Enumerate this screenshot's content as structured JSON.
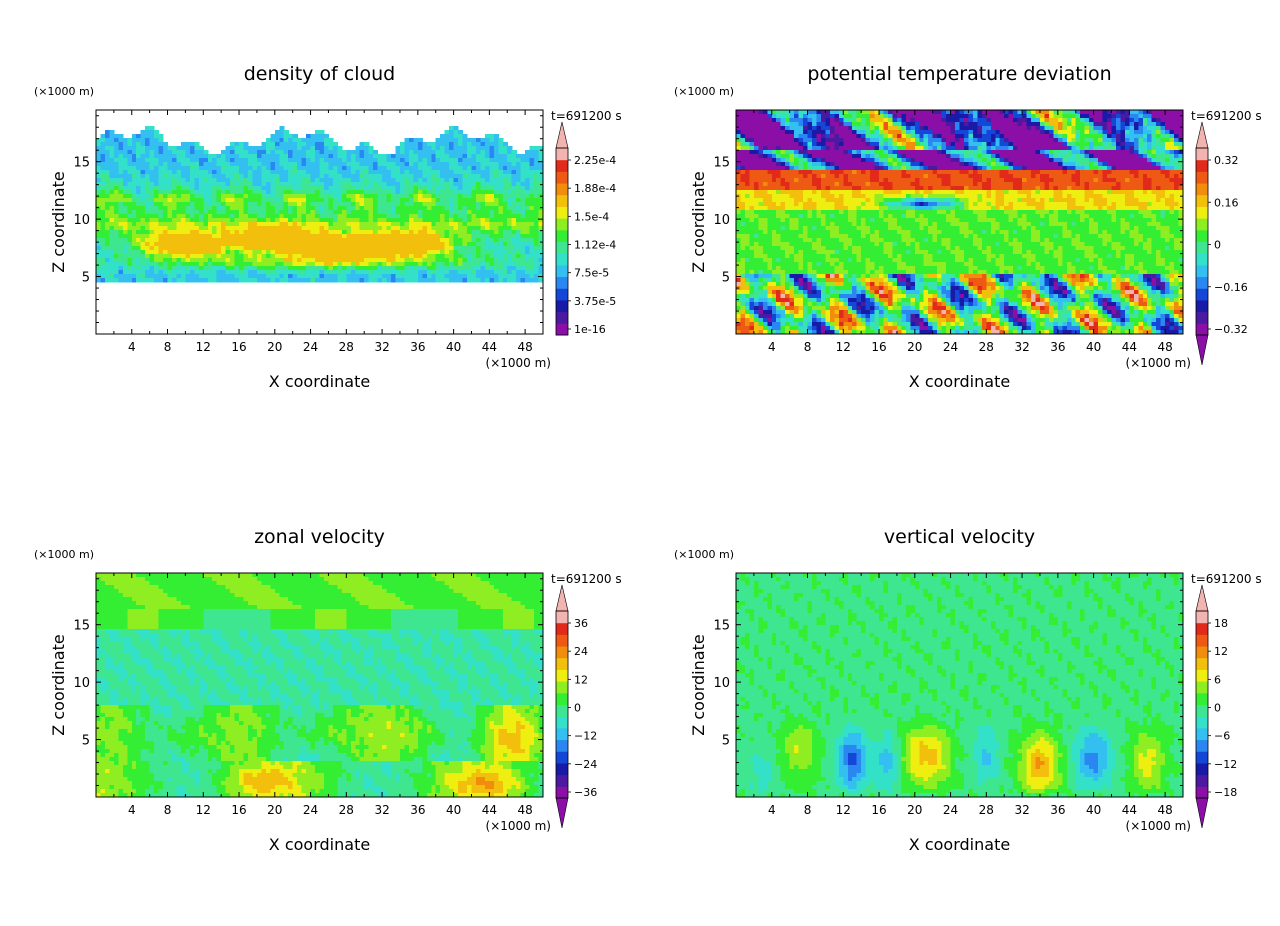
{
  "figure": {
    "panels": [
      {
        "title": "density of cloud",
        "time_label": "t=691200 s",
        "x_unit": "(×1000 m)",
        "y_unit": "(×1000 m)",
        "xlabel": "X coordinate",
        "ylabel": "Z coordinate",
        "colorbar_labels": [
          "2.25e-4",
          "1.88e-4",
          "1.5e-4",
          "1.12e-4",
          "7.5e-5",
          "3.75e-5",
          "1e-16"
        ]
      },
      {
        "title": "potential temperature deviation",
        "time_label": "t=691200 s",
        "x_unit": "(×1000 m)",
        "y_unit": "(×1000 m)",
        "xlabel": "X coordinate",
        "ylabel": "Z coordinate",
        "colorbar_labels": [
          "0.32",
          "0.16",
          "0",
          "−0.16",
          "−0.32"
        ]
      },
      {
        "title": "zonal velocity",
        "time_label": "t=691200 s",
        "x_unit": "(×1000 m)",
        "y_unit": "(×1000 m)",
        "xlabel": "X coordinate",
        "ylabel": "Z coordinate",
        "colorbar_labels": [
          "36",
          "24",
          "12",
          "0",
          "−12",
          "−24",
          "−36"
        ]
      },
      {
        "title": "vertical velocity",
        "time_label": "t=691200 s",
        "x_unit": "(×1000 m)",
        "y_unit": "(×1000 m)",
        "xlabel": "X coordinate",
        "ylabel": "Z coordinate",
        "colorbar_labels": [
          "18",
          "12",
          "6",
          "0",
          "−6",
          "−12",
          "−18"
        ]
      }
    ]
  },
  "chart_data": [
    {
      "type": "heatmap",
      "title": "density of cloud",
      "xlabel": "X coordinate",
      "ylabel": "Z coordinate",
      "x_unit": "(×1000 m)",
      "y_unit": "(×1000 m)",
      "annotation": "t=691200 s",
      "xlim": [
        0,
        50
      ],
      "ylim": [
        0,
        19.5
      ],
      "x_ticks": [
        4,
        8,
        12,
        16,
        20,
        24,
        28,
        32,
        36,
        40,
        44,
        48
      ],
      "y_ticks": [
        5,
        10,
        15
      ],
      "colorbar_levels": [
        1e-16,
        3.75e-05,
        7.5e-05,
        0.000112,
        0.00015,
        0.000188,
        0.000225
      ],
      "colorbar_labels": [
        "1e-16",
        "3.75e-5",
        "7.5e-5",
        "1.12e-4",
        "1.5e-4",
        "1.88e-4",
        "2.25e-4"
      ],
      "field": "cloud"
    },
    {
      "type": "heatmap",
      "title": "potential temperature deviation",
      "xlabel": "X coordinate",
      "ylabel": "Z coordinate",
      "x_unit": "(×1000 m)",
      "y_unit": "(×1000 m)",
      "annotation": "t=691200 s",
      "xlim": [
        0,
        50
      ],
      "ylim": [
        0,
        19.5
      ],
      "x_ticks": [
        4,
        8,
        12,
        16,
        20,
        24,
        28,
        32,
        36,
        40,
        44,
        48
      ],
      "y_ticks": [
        5,
        10,
        15
      ],
      "colorbar_levels": [
        -0.32,
        -0.16,
        0,
        0.16,
        0.32
      ],
      "colorbar_labels": [
        "−0.32",
        "−0.16",
        "0",
        "0.16",
        "0.32"
      ],
      "field": "theta"
    },
    {
      "type": "heatmap",
      "title": "zonal velocity",
      "xlabel": "X coordinate",
      "ylabel": "Z coordinate",
      "x_unit": "(×1000 m)",
      "y_unit": "(×1000 m)",
      "annotation": "t=691200 s",
      "xlim": [
        0,
        50
      ],
      "ylim": [
        0,
        19.5
      ],
      "x_ticks": [
        4,
        8,
        12,
        16,
        20,
        24,
        28,
        32,
        36,
        40,
        44,
        48
      ],
      "y_ticks": [
        5,
        10,
        15
      ],
      "colorbar_levels": [
        -36,
        -24,
        -12,
        0,
        12,
        24,
        36
      ],
      "colorbar_labels": [
        "−36",
        "−24",
        "−12",
        "0",
        "12",
        "24",
        "36"
      ],
      "field": "u"
    },
    {
      "type": "heatmap",
      "title": "vertical velocity",
      "xlabel": "X coordinate",
      "ylabel": "Z coordinate",
      "x_unit": "(×1000 m)",
      "y_unit": "(×1000 m)",
      "annotation": "t=691200 s",
      "xlim": [
        0,
        50
      ],
      "ylim": [
        0,
        19.5
      ],
      "x_ticks": [
        4,
        8,
        12,
        16,
        20,
        24,
        28,
        32,
        36,
        40,
        44,
        48
      ],
      "y_ticks": [
        5,
        10,
        15
      ],
      "colorbar_levels": [
        -18,
        -12,
        -6,
        0,
        6,
        12,
        18
      ],
      "colorbar_labels": [
        "−18",
        "−12",
        "−6",
        "0",
        "6",
        "12",
        "18"
      ],
      "field": "w"
    }
  ],
  "colors": {
    "palette": [
      "#8b0fa6",
      "#4b1aa0",
      "#1a1aa8",
      "#1446d8",
      "#2a86f0",
      "#33c0f0",
      "#33e0c8",
      "#3ee690",
      "#33ee33",
      "#8eee22",
      "#eeee10",
      "#f2c00c",
      "#f28c0c",
      "#ee5a14",
      "#e22a1a",
      "#f2b4b0"
    ]
  }
}
